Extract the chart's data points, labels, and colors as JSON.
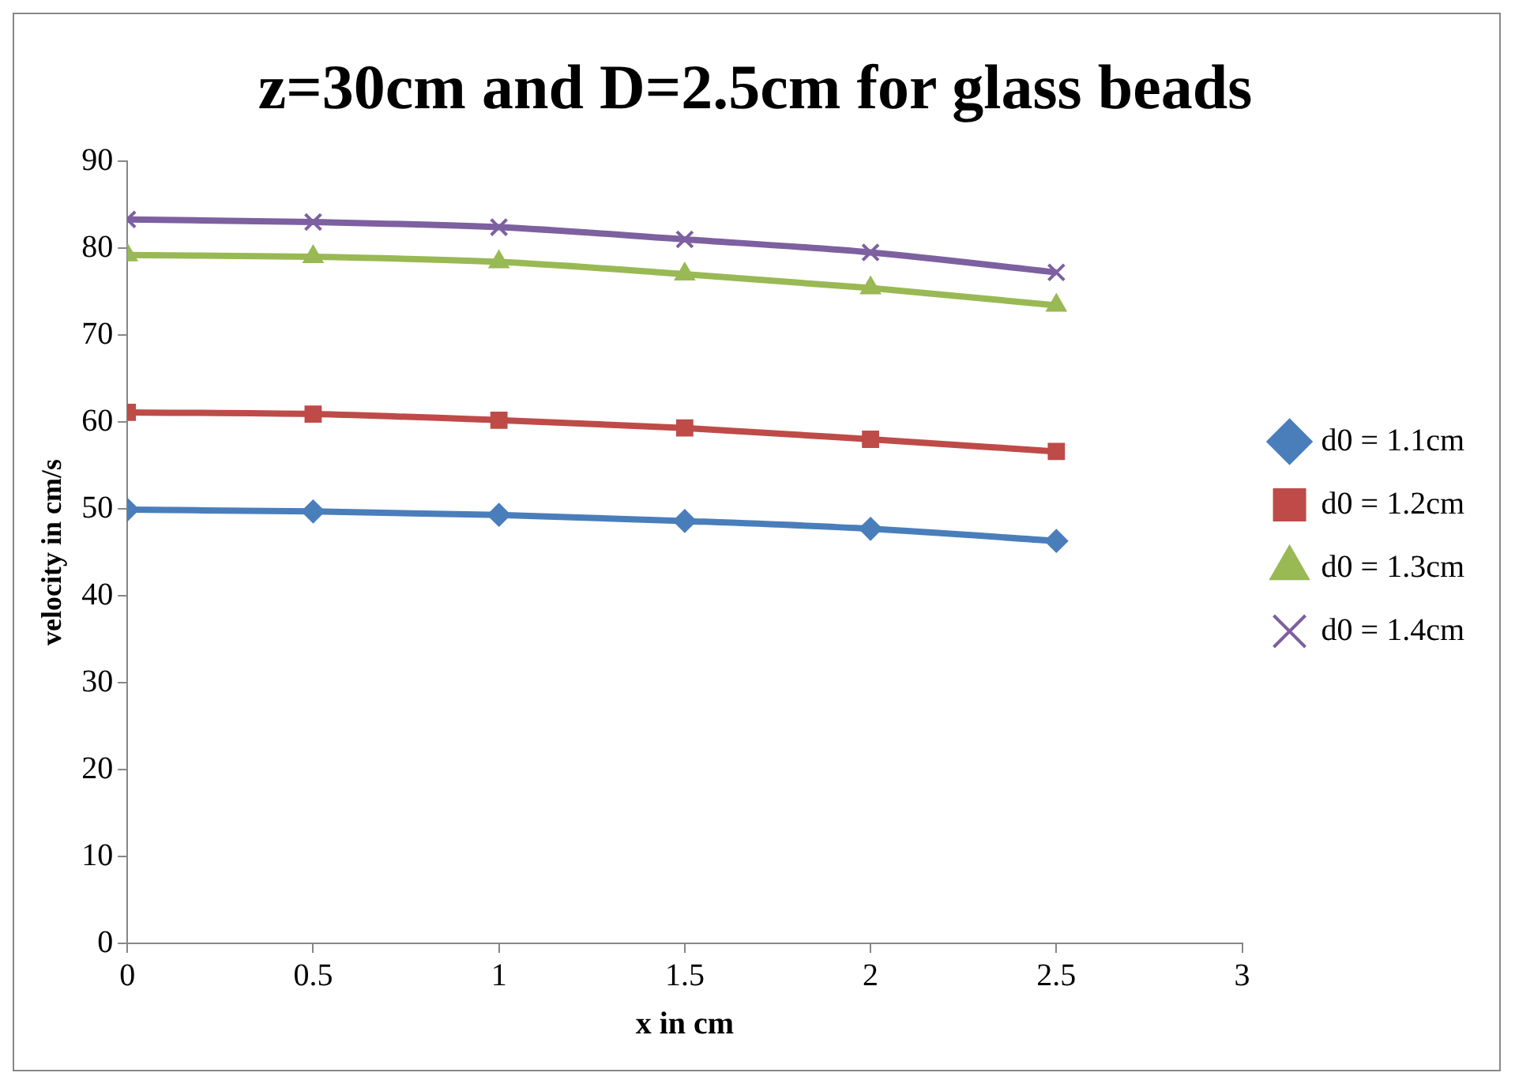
{
  "chart_data": {
    "type": "line",
    "title": "z=30cm and D=2.5cm for glass beads",
    "xlabel": "x in cm",
    "ylabel": "velocity in cm/s",
    "x": [
      0,
      0.5,
      1,
      1.5,
      2,
      2.5
    ],
    "series": [
      {
        "name": "d0 = 1.1cm",
        "color": "#4a7ebb",
        "marker": "diamond",
        "values": [
          49.9,
          49.7,
          49.3,
          48.6,
          47.7,
          46.3
        ]
      },
      {
        "name": "d0 = 1.2cm",
        "color": "#be4b48",
        "marker": "square",
        "values": [
          61.1,
          60.9,
          60.2,
          59.3,
          58.0,
          56.6
        ]
      },
      {
        "name": "d0 = 1.3cm",
        "color": "#98b954",
        "marker": "triangle",
        "values": [
          79.2,
          79.0,
          78.4,
          77.0,
          75.4,
          73.4
        ]
      },
      {
        "name": "d0 = 1.4cm",
        "color": "#7d60a0",
        "marker": "cross",
        "values": [
          83.3,
          83.0,
          82.4,
          81.0,
          79.5,
          77.2
        ]
      }
    ],
    "xlim": [
      0,
      3
    ],
    "xticks": [
      0,
      0.5,
      1,
      1.5,
      2,
      2.5,
      3
    ],
    "ylim": [
      0,
      90
    ],
    "yticks": [
      0,
      10,
      20,
      30,
      40,
      50,
      60,
      70,
      80,
      90
    ],
    "grid": false,
    "legend": "right",
    "line_style": "solid"
  }
}
